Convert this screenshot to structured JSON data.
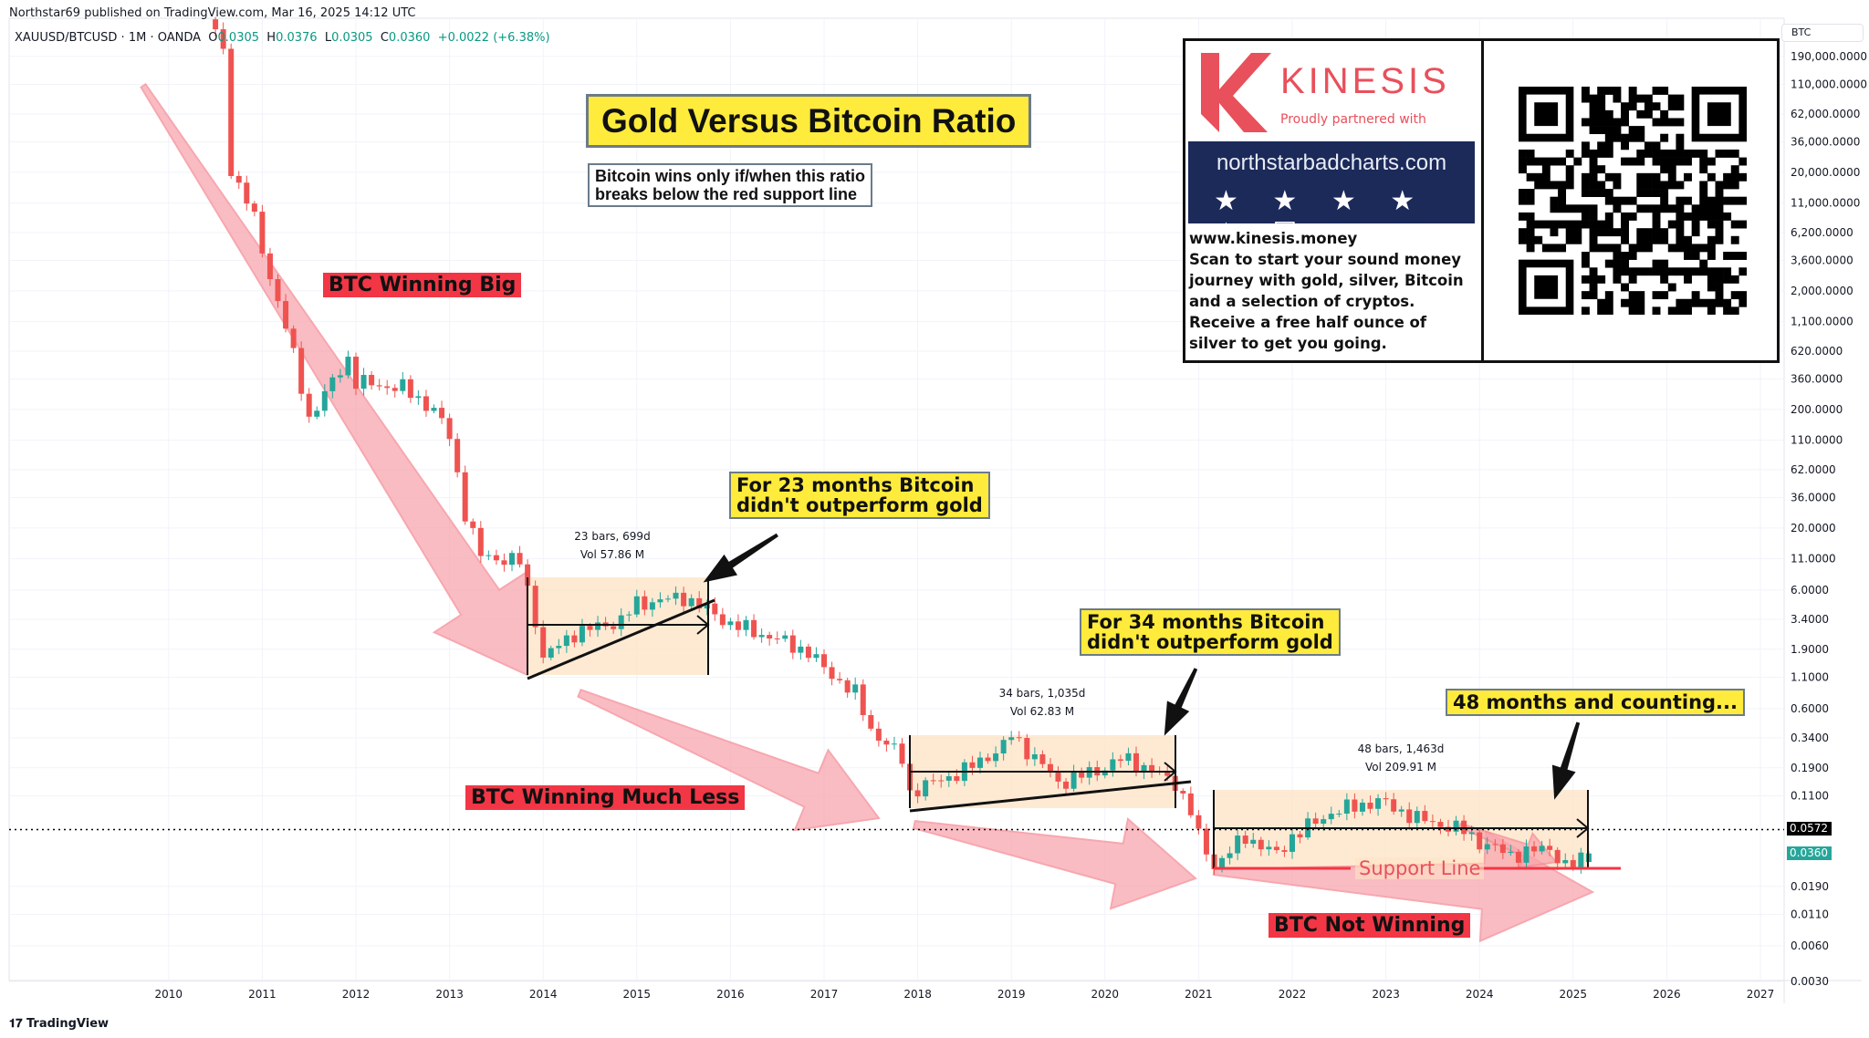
{
  "publisher_line": "Northstar69 published on TradingView.com, Mar 16, 2025 14:12 UTC",
  "legend": {
    "symbol": "XAUUSD/BTCUSD · 1M · OANDA",
    "o_label": "O",
    "o": "0.0305",
    "h_label": "H",
    "h": "0.0376",
    "l_label": "L",
    "l": "0.0305",
    "c_label": "C",
    "c": "0.0360",
    "change": "+0.0022 (+6.38%)"
  },
  "axis_unit": "BTC",
  "footer": "TradingView",
  "colors": {
    "up": "#26a69a",
    "down": "#ef5350",
    "red_label": "#f23645",
    "yellow": "#ffeb3b",
    "box": "#fde3c4",
    "pink_arrow": "#f8a6ae",
    "support": "#f23645"
  },
  "annotations": {
    "title": "Gold Versus Bitcoin Ratio",
    "subtitle": [
      "Bitcoin wins only if/when this ratio",
      "breaks below the red support line"
    ],
    "btc_winning_big": "BTC Winning Big",
    "btc_winning_much_less": "BTC Winning Much Less",
    "btc_not_winning": "BTC Not Winning",
    "note_23": [
      "For 23 months Bitcoin",
      "didn't outperform gold"
    ],
    "note_34": [
      "For 34 months Bitcoin",
      "didn't outperform gold"
    ],
    "note_48": "48 months and counting...",
    "support_line": "Support Line",
    "ranges": [
      {
        "bars": "23 bars, 699d",
        "vol": "Vol 57.86 M"
      },
      {
        "bars": "34 bars, 1,035d",
        "vol": "Vol 62.83 M"
      },
      {
        "bars": "48 bars, 1,463d",
        "vol": "Vol 209.91 M"
      }
    ]
  },
  "ad": {
    "brand": "KINESIS",
    "partnered": "Proudly partnered with",
    "site": "northstarbadcharts.com",
    "stars": "★ ★ ★ ★ ★ ☑",
    "url": "www.kinesis.money",
    "text": "Scan to start your sound money journey with gold, silver, Bitcoin and a selection of cryptos. Receive a free half ounce of silver to get you going."
  },
  "chart_data": {
    "type": "candlestick",
    "title": "Gold Versus Bitcoin Ratio",
    "interval": "1M",
    "y_scale": "log",
    "ylim": [
      0.0028,
      200000
    ],
    "xlim": [
      2009.4,
      2027.4
    ],
    "grid": true,
    "y_ticks": [
      "190,000.0000",
      "110,000.0000",
      "62,000.0000",
      "36,000.0000",
      "20,000.0000",
      "11,000.0000",
      "6,200.0000",
      "3,600.0000",
      "2,000.0000",
      "1,100.0000",
      "620.0000",
      "360.0000",
      "200.0000",
      "110.0000",
      "62.0000",
      "36.0000",
      "20.0000",
      "11.0000",
      "6.0000",
      "3.4000",
      "1.9000",
      "1.1000",
      "0.6000",
      "0.3400",
      "0.1900",
      "0.1100",
      "0.0190",
      "0.0110",
      "0.0060",
      "0.0030"
    ],
    "x_ticks": [
      "2010",
      "2011",
      "2012",
      "2013",
      "2014",
      "2015",
      "2016",
      "2017",
      "2018",
      "2019",
      "2020",
      "2021",
      "2022",
      "2023",
      "2024",
      "2025",
      "2026",
      "2027"
    ],
    "price_tags": [
      {
        "value": "0.0572",
        "color": "#000000"
      },
      {
        "value": "0.0360",
        "color": "#26a69a"
      }
    ],
    "horizontal_line": 0.0572,
    "support_level": 0.0255,
    "approx_closes": [
      [
        2010.5,
        300000
      ],
      [
        2010.58,
        225000
      ],
      [
        2010.67,
        19700
      ],
      [
        2010.83,
        12000
      ],
      [
        2010.92,
        7800
      ],
      [
        2011.0,
        4350
      ],
      [
        2011.25,
        1000
      ],
      [
        2011.42,
        300
      ],
      [
        2011.5,
        169
      ],
      [
        2011.67,
        269
      ],
      [
        2011.83,
        428
      ],
      [
        2011.92,
        540
      ],
      [
        2012.0,
        339
      ],
      [
        2012.5,
        302
      ],
      [
        2012.83,
        200
      ],
      [
        2013.0,
        119
      ],
      [
        2013.17,
        26
      ],
      [
        2013.33,
        11.7
      ],
      [
        2013.75,
        10.4
      ],
      [
        2013.92,
        3.3
      ],
      [
        2014.0,
        1.6
      ],
      [
        2014.33,
        2.6
      ],
      [
        2014.83,
        3.3
      ],
      [
        2015.0,
        4.6
      ],
      [
        2015.5,
        5.2
      ],
      [
        2015.75,
        4.1
      ],
      [
        2016.0,
        3.1
      ],
      [
        2016.5,
        2.3
      ],
      [
        2016.83,
        1.8
      ],
      [
        2017.0,
        1.3
      ],
      [
        2017.33,
        0.81
      ],
      [
        2017.5,
        0.4
      ],
      [
        2017.83,
        0.23
      ],
      [
        2017.92,
        0.113
      ],
      [
        2018.0,
        0.127
      ],
      [
        2018.5,
        0.18
      ],
      [
        2018.92,
        0.29
      ],
      [
        2019.0,
        0.36
      ],
      [
        2019.33,
        0.2
      ],
      [
        2019.5,
        0.142
      ],
      [
        2019.92,
        0.18
      ],
      [
        2020.2,
        0.23
      ],
      [
        2020.5,
        0.18
      ],
      [
        2020.75,
        0.142
      ],
      [
        2020.92,
        0.08
      ],
      [
        2021.0,
        0.05
      ],
      [
        2021.17,
        0.028
      ],
      [
        2021.5,
        0.05
      ],
      [
        2021.83,
        0.035
      ],
      [
        2022.0,
        0.05
      ],
      [
        2022.42,
        0.08
      ],
      [
        2022.92,
        0.1
      ],
      [
        2023.33,
        0.071
      ],
      [
        2023.83,
        0.056
      ],
      [
        2024.0,
        0.045
      ],
      [
        2024.33,
        0.035
      ],
      [
        2024.75,
        0.04
      ],
      [
        2024.92,
        0.028
      ],
      [
        2025.0,
        0.029
      ],
      [
        2025.17,
        0.036
      ]
    ],
    "last_candle": {
      "open": 0.0305,
      "high": 0.0376,
      "low": 0.0305,
      "close": 0.036
    }
  }
}
